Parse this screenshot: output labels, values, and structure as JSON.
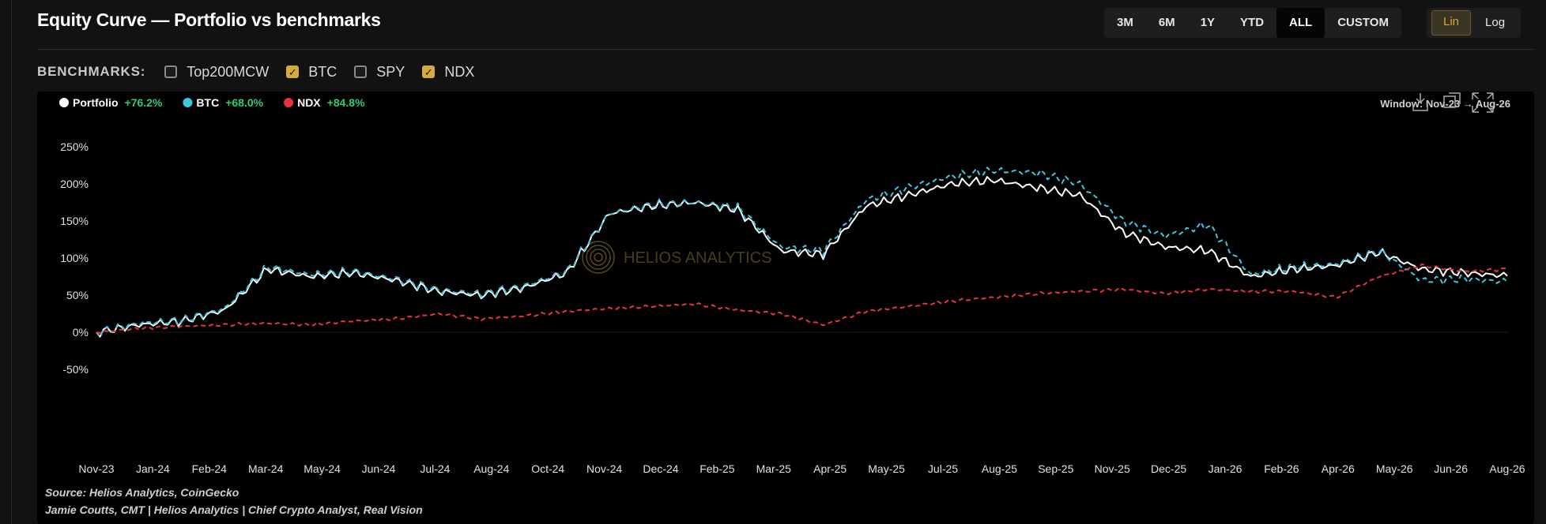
{
  "header": {
    "title": "Equity Curve — Portfolio vs benchmarks",
    "ranges": [
      {
        "label": "3M",
        "active": false
      },
      {
        "label": "6M",
        "active": false
      },
      {
        "label": "1Y",
        "active": false
      },
      {
        "label": "YTD",
        "active": false
      },
      {
        "label": "ALL",
        "active": true
      },
      {
        "label": "CUSTOM",
        "active": false
      }
    ],
    "scales": [
      {
        "label": "Lin",
        "active": true
      },
      {
        "label": "Log",
        "active": false
      }
    ]
  },
  "benchmarks": {
    "label": "BENCHMARKS:",
    "items": [
      {
        "label": "Top200MCW",
        "checked": false
      },
      {
        "label": "BTC",
        "checked": true
      },
      {
        "label": "SPY",
        "checked": false
      },
      {
        "label": "NDX",
        "checked": true
      }
    ]
  },
  "colors": {
    "portfolio": "#ffffff",
    "btc": "#3cc8e0",
    "ndx": "#e8333f",
    "positive": "#2ecc71",
    "accent": "#d4ac3a"
  },
  "toolbar_icons": [
    "download-icon",
    "copy-icon",
    "expand-icon"
  ],
  "watermark": "HELIOS ANALYTICS",
  "source": {
    "line1": "Source: Helios Analytics, CoinGecko",
    "line2": "Jamie Coutts, CMT | Helios Analytics | Chief Crypto Analyst, Real Vision"
  },
  "chart_data": {
    "type": "line",
    "window_label": "Window: Nov-23 → Aug-26",
    "legend": [
      {
        "name": "Portfolio",
        "change": "+76.2%"
      },
      {
        "name": "BTC",
        "change": "+68.0%"
      },
      {
        "name": "NDX",
        "change": "+84.8%"
      }
    ],
    "y_ticks": [
      "250%",
      "200%",
      "150%",
      "100%",
      "50%",
      "0%",
      "-50%"
    ],
    "ylim": [
      -50,
      250
    ],
    "x_ticks": [
      "Nov-23",
      "Jan-24",
      "Feb-24",
      "Mar-24",
      "May-24",
      "Jun-24",
      "Jul-24",
      "Aug-24",
      "Oct-24",
      "Nov-24",
      "Dec-24",
      "Feb-25",
      "Mar-25",
      "Apr-25",
      "May-25",
      "Jul-25",
      "Aug-25",
      "Sep-25",
      "Nov-25",
      "Dec-25",
      "Jan-26",
      "Feb-26",
      "Apr-26",
      "May-26",
      "Jun-26",
      "Aug-26"
    ],
    "x": [
      "Nov-23",
      "Dec-23",
      "Jan-24",
      "Feb-24",
      "Mar-24",
      "Apr-24",
      "May-24",
      "Jun-24",
      "Jul-24",
      "Aug-24",
      "Sep-24",
      "Oct-24",
      "Nov-24",
      "Dec-24",
      "Jan-25",
      "Feb-25",
      "Mar-25",
      "Apr-25",
      "May-25",
      "Jun-25",
      "Jul-25",
      "Aug-25",
      "Sep-25",
      "Oct-25",
      "Nov-25",
      "Dec-25",
      "Jan-26",
      "Feb-26",
      "Mar-26",
      "Apr-26",
      "May-26",
      "Jun-26",
      "Jul-26",
      "Aug-26"
    ],
    "series": [
      {
        "name": "Portfolio",
        "style": "solid",
        "values": [
          0,
          10,
          15,
          30,
          85,
          75,
          80,
          70,
          55,
          50,
          60,
          80,
          160,
          170,
          175,
          165,
          110,
          105,
          170,
          185,
          200,
          205,
          195,
          185,
          135,
          115,
          110,
          75,
          85,
          90,
          108,
          85,
          80,
          76
        ]
      },
      {
        "name": "BTC",
        "style": "dashed",
        "values": [
          0,
          12,
          16,
          32,
          88,
          78,
          82,
          72,
          57,
          52,
          62,
          82,
          160,
          172,
          175,
          168,
          115,
          110,
          178,
          195,
          210,
          218,
          215,
          200,
          150,
          130,
          145,
          78,
          88,
          92,
          110,
          70,
          72,
          68
        ]
      },
      {
        "name": "NDX",
        "style": "dashed",
        "values": [
          0,
          5,
          8,
          10,
          12,
          10,
          15,
          18,
          25,
          18,
          22,
          28,
          32,
          35,
          38,
          30,
          25,
          10,
          28,
          35,
          42,
          47,
          52,
          55,
          58,
          52,
          58,
          55,
          55,
          47,
          75,
          90,
          82,
          85
        ]
      }
    ],
    "grid": false,
    "legend_position": "top-left"
  }
}
